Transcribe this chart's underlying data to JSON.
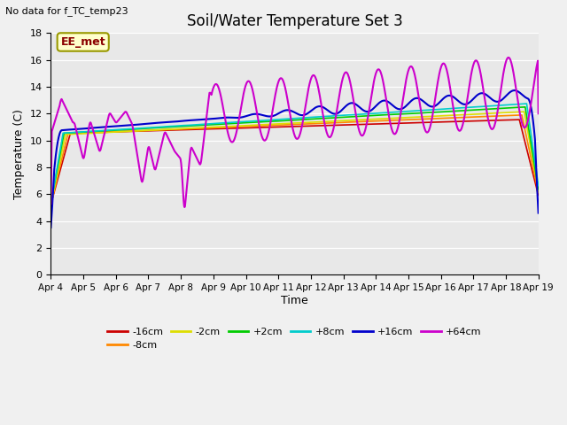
{
  "title": "Soil/Water Temperature Set 3",
  "subtitle": "No data for f_TC_temp23",
  "xlabel": "Time",
  "ylabel": "Temperature (C)",
  "annotation": "EE_met",
  "ylim": [
    0,
    18
  ],
  "xlim": [
    0,
    15
  ],
  "xtick_labels": [
    "Apr 4",
    "Apr 5",
    "Apr 6",
    "Apr 7",
    "Apr 8",
    "Apr 9",
    "Apr 10",
    "Apr 11",
    "Apr 12",
    "Apr 13",
    "Apr 14",
    "Apr 15",
    "Apr 16",
    "Apr 17",
    "Apr 18",
    "Apr 19"
  ],
  "ytick_values": [
    0,
    2,
    4,
    6,
    8,
    10,
    12,
    14,
    16,
    18
  ],
  "fig_bg": "#f0f0f0",
  "plot_bg": "#e8e8e8",
  "colors": {
    "m16cm": "#cc0000",
    "m8cm": "#ff8800",
    "m2cm": "#dddd00",
    "p2cm": "#00cc00",
    "p8cm": "#00cccc",
    "p16cm": "#0000cc",
    "p64cm": "#cc00cc"
  },
  "labels": {
    "m16cm": "-16cm",
    "m8cm": "-8cm",
    "m2cm": "-2cm",
    "p2cm": "+2cm",
    "p8cm": "+8cm",
    "p16cm": "+16cm",
    "p64cm": "+64cm"
  },
  "legend_ncol_row1": 6,
  "legend_ncol_row2": 1
}
